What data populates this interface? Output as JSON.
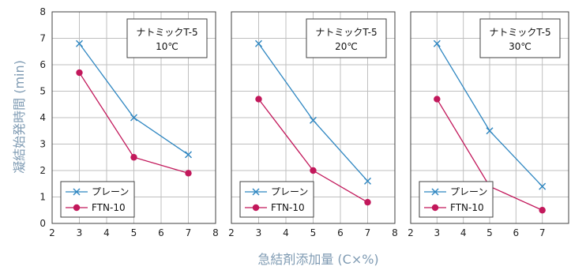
{
  "figure": {
    "ylabel": "凝結始発時間 (min)",
    "xlabel": "急結剤添加量 (C×%)"
  },
  "chart_data": [
    {
      "type": "line",
      "annotation_line1": "ナトミックT-5",
      "annotation_line2": "10℃",
      "xlim": [
        2,
        8
      ],
      "ylim": [
        0,
        8
      ],
      "x_ticks": [
        2,
        3,
        4,
        5,
        6,
        7,
        8
      ],
      "y_ticks": [
        0,
        1,
        2,
        3,
        4,
        5,
        6,
        7,
        8
      ],
      "grid": true,
      "legend_position": "bottom-left",
      "series": [
        {
          "name": "プレーン",
          "marker": "x",
          "color": "#2e86c1",
          "x": [
            3,
            5,
            7
          ],
          "y": [
            6.8,
            4.0,
            2.6
          ]
        },
        {
          "name": "FTN-10",
          "marker": "circle",
          "color": "#c2185b",
          "x": [
            3,
            5,
            7
          ],
          "y": [
            5.7,
            2.5,
            1.9
          ]
        }
      ]
    },
    {
      "type": "line",
      "annotation_line1": "ナトミックT-5",
      "annotation_line2": "20℃",
      "xlim": [
        2,
        8
      ],
      "ylim": [
        0,
        8
      ],
      "x_ticks": [
        2,
        3,
        4,
        5,
        6,
        7,
        8
      ],
      "grid": true,
      "legend_position": "bottom-left",
      "series": [
        {
          "name": "プレーン",
          "marker": "x",
          "color": "#2e86c1",
          "x": [
            3,
            5,
            7
          ],
          "y": [
            6.8,
            3.9,
            1.6
          ]
        },
        {
          "name": "FTN-10",
          "marker": "circle",
          "color": "#c2185b",
          "x": [
            3,
            5,
            7
          ],
          "y": [
            4.7,
            2.0,
            0.8
          ]
        }
      ]
    },
    {
      "type": "line",
      "annotation_line1": "ナトミックT-5",
      "annotation_line2": "30℃",
      "xlim": [
        2,
        8
      ],
      "ylim": [
        0,
        8
      ],
      "x_ticks": [
        2,
        3,
        4,
        5,
        6,
        7
      ],
      "grid": true,
      "legend_position": "bottom-left",
      "series": [
        {
          "name": "プレーン",
          "marker": "x",
          "color": "#2e86c1",
          "x": [
            3,
            5,
            7
          ],
          "y": [
            6.8,
            3.5,
            1.4
          ]
        },
        {
          "name": "FTN-10",
          "marker": "circle",
          "color": "#c2185b",
          "x": [
            3,
            5,
            7
          ],
          "y": [
            4.7,
            1.4,
            0.5
          ]
        }
      ]
    }
  ]
}
